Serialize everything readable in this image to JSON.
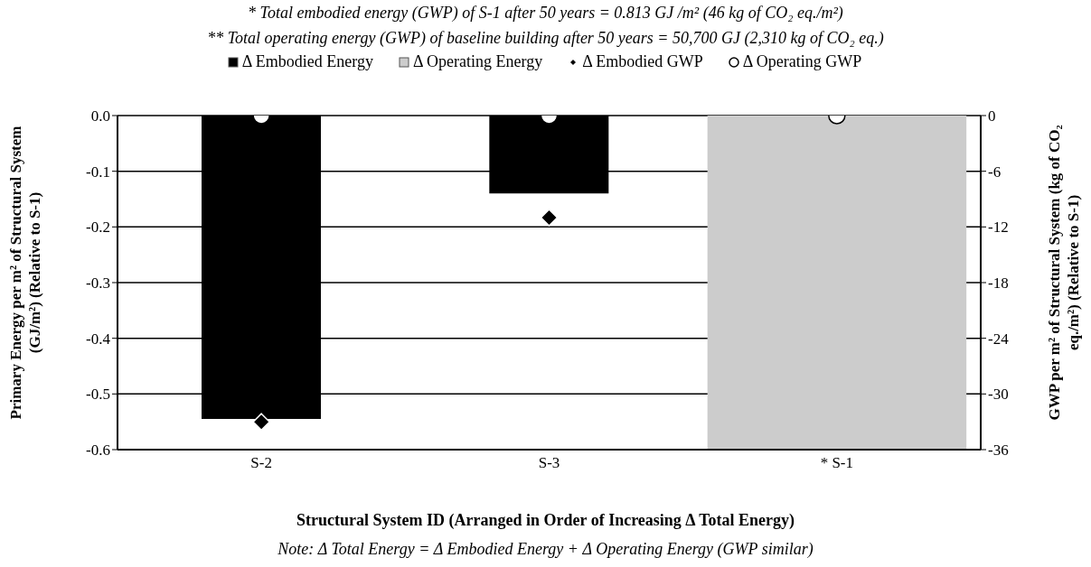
{
  "chart_data": {
    "type": "bar",
    "annotations": [
      "* Total embodied energy (GWP) of S-1 after 50 years =  0.813 GJ /m² (46 kg of CO₂ eq./m²)",
      "** Total operating energy (GWP) of baseline building after 50 years =  50,700 GJ (2,310 kg of CO₂ eq.)",
      "Note: Δ Total Energy = Δ Embodied Energy + Δ Operating Energy (GWP similar)"
    ],
    "xlabel": "Structural System ID (Arranged in Order of Increasing Δ Total Energy)",
    "ylabel": "Primary Energy per m² of Structural System (GJ/m²)  (Relative to S-1)",
    "y2label": "GWP per m² of Structural System (kg of CO₂ eq./m²)  (Relative to S-1)",
    "categories": [
      "S-2",
      "S-3",
      "* S-1"
    ],
    "series": [
      {
        "name": "Δ Embodied Energy",
        "color": "#000000",
        "values": [
          -0.545,
          -0.14,
          null
        ]
      },
      {
        "name": "Δ Operating Energy",
        "color": "#cccccc",
        "values": [
          null,
          null,
          -0.6
        ]
      },
      {
        "name": "Δ Embodied GWP",
        "type": "scatter",
        "axis": "y2",
        "marker": "diamond",
        "color": "#000000",
        "values": [
          -33,
          -11,
          null
        ]
      },
      {
        "name": "Δ Operating GWP",
        "type": "scatter",
        "axis": "y2",
        "marker": "circle",
        "color": "#ffffff",
        "values": [
          0,
          0,
          0
        ]
      }
    ],
    "ylim": [
      -0.6,
      0
    ],
    "yticks": [
      {
        "value": 0,
        "label": "0.0"
      },
      -0.1,
      -0.2,
      -0.3,
      -0.4,
      -0.5,
      -0.6
    ],
    "y2lim": [
      -36,
      0
    ],
    "y2ticks": [
      0,
      -6,
      -12,
      -18,
      -24,
      -30,
      -36
    ],
    "grid": "y",
    "legend": "top"
  }
}
